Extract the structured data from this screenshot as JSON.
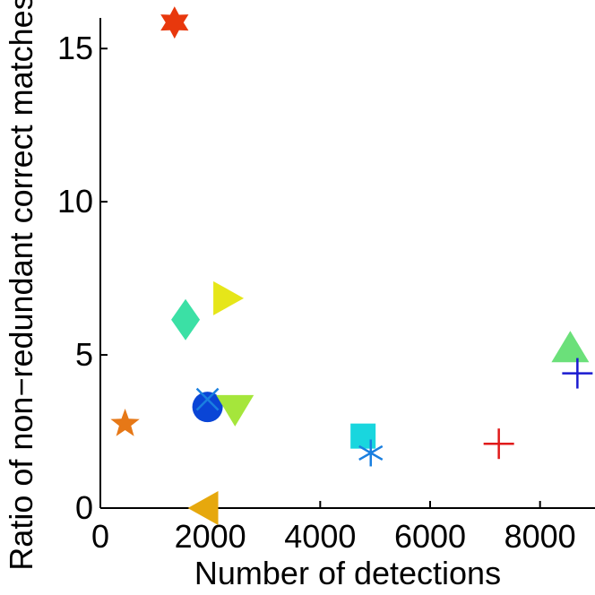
{
  "chart_data": {
    "type": "scatter",
    "title": "",
    "xlabel": "Number of detections",
    "ylabel": "Ratio of non−redundant correct matches",
    "xlim": [
      0,
      9000
    ],
    "ylim": [
      0,
      16
    ],
    "xticks": [
      0,
      2000,
      4000,
      6000,
      8000
    ],
    "xtick_labels": [
      "0",
      "2000",
      "4000",
      "6000",
      "8000"
    ],
    "yticks": [
      0,
      5,
      10,
      15
    ],
    "ytick_labels": [
      "0",
      "5",
      "10",
      "15"
    ],
    "grid": false,
    "points": [
      {
        "x": 1350,
        "y": 15.85,
        "marker": "hexagram",
        "color": "#e8380d"
      },
      {
        "x": 2300,
        "y": 6.85,
        "marker": "triangle-right",
        "color": "#e6e619"
      },
      {
        "x": 1550,
        "y": 6.15,
        "marker": "diamond",
        "color": "#3be0a5"
      },
      {
        "x": 8550,
        "y": 5.2,
        "marker": "triangle-up",
        "color": "#6be07a"
      },
      {
        "x": 8680,
        "y": 4.4,
        "marker": "plus",
        "color": "#1a1ad0"
      },
      {
        "x": 1950,
        "y": 3.3,
        "marker": "circle",
        "color": "#0a45d6"
      },
      {
        "x": 1950,
        "y": 3.55,
        "marker": "x",
        "color": "#1a7fe0"
      },
      {
        "x": 2450,
        "y": 3.25,
        "marker": "triangle-down",
        "color": "#a5e63b"
      },
      {
        "x": 450,
        "y": 2.75,
        "marker": "pentagram",
        "color": "#e67817"
      },
      {
        "x": 4780,
        "y": 2.35,
        "marker": "square",
        "color": "#19d6de"
      },
      {
        "x": 4920,
        "y": 1.8,
        "marker": "asterisk",
        "color": "#1a7fe0"
      },
      {
        "x": 7250,
        "y": 2.1,
        "marker": "plus",
        "color": "#e01a1a"
      },
      {
        "x": 1900,
        "y": 0.0,
        "marker": "triangle-left",
        "color": "#e6a80d"
      }
    ]
  }
}
